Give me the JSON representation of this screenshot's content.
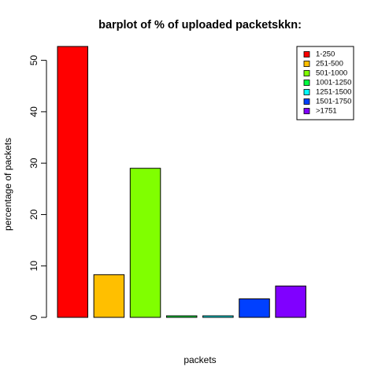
{
  "chart_data": {
    "type": "bar",
    "title": "barplot of % of uploaded packetskkn:",
    "xlabel": "packets",
    "ylabel": "percentage of packets",
    "ylim": [
      0,
      54
    ],
    "yticks": [
      0,
      10,
      20,
      30,
      40,
      50
    ],
    "grid": false,
    "legend_position": "top-right",
    "categories": [
      "1-250",
      "251-500",
      "501-1000",
      "1001-1250",
      "1251-1500",
      "1501-1750",
      ">1751",
      ""
    ],
    "values": [
      52.7,
      8.3,
      29.0,
      0.3,
      0.3,
      3.6,
      6.1,
      0.0
    ],
    "colors": [
      "#FF0000",
      "#FFBF00",
      "#80FF00",
      "#00FF40",
      "#00FFFF",
      "#0040FF",
      "#8000FF",
      "#FF00BF"
    ],
    "legend": [
      {
        "label": "1-250",
        "color": "#FF0000"
      },
      {
        "label": "251-500",
        "color": "#FFBF00"
      },
      {
        "label": "501-1000",
        "color": "#80FF00"
      },
      {
        "label": "1001-1250",
        "color": "#00FF40"
      },
      {
        "label": "1251-1500",
        "color": "#00FFFF"
      },
      {
        "label": "1501-1750",
        "color": "#0040FF"
      },
      {
        "label": ">1751",
        "color": "#8000FF"
      }
    ]
  }
}
